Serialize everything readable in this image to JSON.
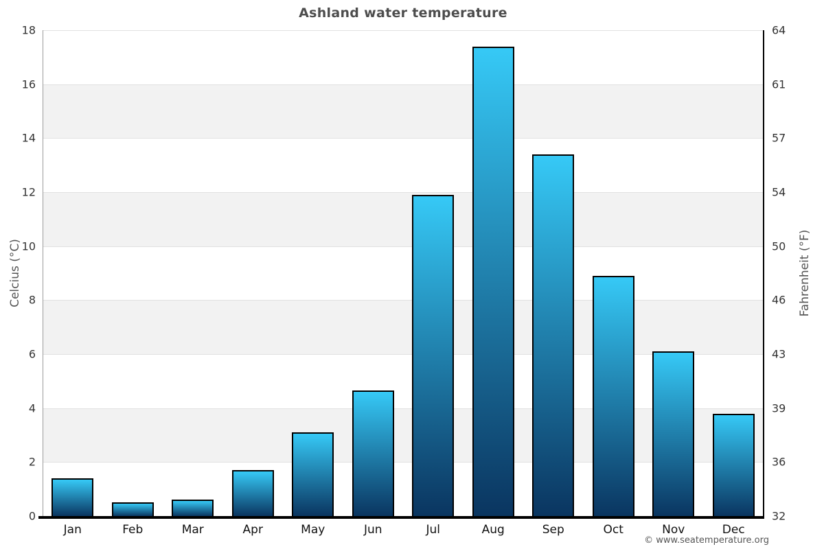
{
  "title": "Ashland water temperature",
  "copyright": "© www.seatemperature.org",
  "chart_data": {
    "type": "bar",
    "title": "Ashland water temperature",
    "categories": [
      "Jan",
      "Feb",
      "Mar",
      "Apr",
      "May",
      "Jun",
      "Jul",
      "Aug",
      "Sep",
      "Oct",
      "Nov",
      "Dec"
    ],
    "values": [
      1.4,
      0.5,
      0.6,
      1.7,
      3.1,
      4.65,
      11.9,
      17.4,
      13.4,
      8.9,
      6.1,
      3.8
    ],
    "series_name": "water temperature (°C)",
    "ylabel_left": "Celcius (°C)",
    "ylabel_right": "Fahrenheit (°F)",
    "yticks_celsius": [
      0,
      2,
      4,
      6,
      8,
      10,
      12,
      14,
      16,
      18
    ],
    "yticks_fahrenheit": [
      32,
      36,
      39,
      43,
      46,
      50,
      54,
      57,
      61,
      64
    ],
    "ylim": [
      0,
      18
    ],
    "grid": "horizontal gridlines every 2°C with alternating gray bands",
    "legend": "none"
  },
  "colors": {
    "bar_gradient_top": "#36c9f6",
    "bar_gradient_bottom": "#0a3560",
    "bar_border": "#000000",
    "band_fill": "#f2f2f2",
    "gridline": "#e1e1e1",
    "left_axis_line": "#9a9a9a",
    "right_axis_line": "#000000",
    "bottom_axis_line": "#000000",
    "title_color": "#4d4d4d",
    "tick_label_color": "#333333",
    "axis_title_color": "#555555",
    "copyright_color": "#555555"
  }
}
